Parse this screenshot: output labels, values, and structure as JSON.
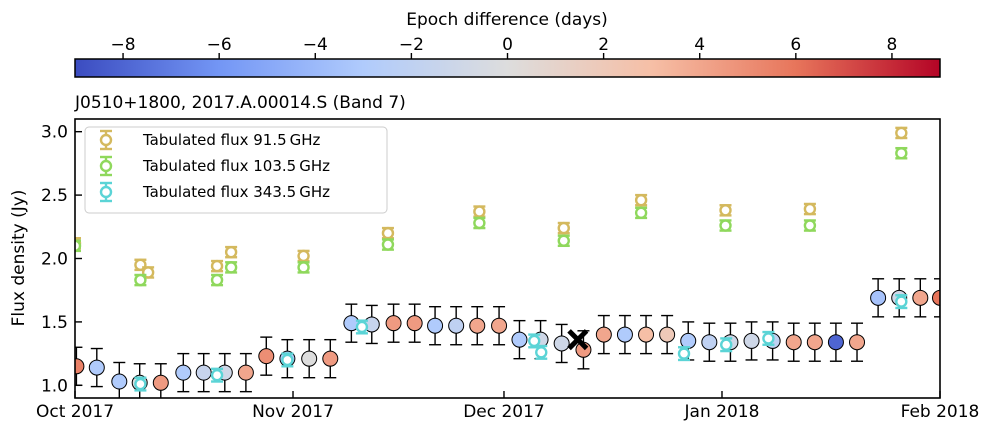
{
  "chart_data": {
    "type": "scatter",
    "title": "J0510+1800, 2017.A.00014.S (Band 7)",
    "xlabel": "",
    "ylabel": "Flux density (Jy)",
    "x_unit": "days since 2017-10-01",
    "xlim": [
      0,
      123
    ],
    "ylim": [
      0.9,
      3.1
    ],
    "xticks": [
      {
        "x": 0,
        "label": "Oct 2017"
      },
      {
        "x": 31,
        "label": "Nov 2017"
      },
      {
        "x": 61,
        "label": "Dec 2017"
      },
      {
        "x": 92,
        "label": "Jan 2018"
      },
      {
        "x": 123,
        "label": "Feb 2018"
      }
    ],
    "yticks": [
      {
        "v": 1.0,
        "label": "1.0"
      },
      {
        "v": 1.5,
        "label": "1.5"
      },
      {
        "v": 2.0,
        "label": "2.0"
      },
      {
        "v": 2.5,
        "label": "2.5"
      },
      {
        "v": 3.0,
        "label": "3.0"
      }
    ],
    "colorbar": {
      "label": "Epoch difference (days)",
      "range": [
        -9,
        9
      ],
      "colormap": "coolwarm",
      "stops": [
        "#3b4cc0",
        "#7396f5",
        "#b0cbfc",
        "#dddddd",
        "#f6bfa6",
        "#e7755b",
        "#b40426"
      ],
      "ticks": [
        {
          "v": -8,
          "label": "−8"
        },
        {
          "v": -6,
          "label": "−6"
        },
        {
          "v": -4,
          "label": "−4"
        },
        {
          "v": -2,
          "label": "−2"
        },
        {
          "v": 0,
          "label": "0"
        },
        {
          "v": 2,
          "label": "2"
        },
        {
          "v": 4,
          "label": "4"
        },
        {
          "v": 6,
          "label": "6"
        },
        {
          "v": 8,
          "label": "8"
        }
      ]
    },
    "legend": {
      "location": "top-left",
      "entries": [
        {
          "label": "Tabulated flux 91.5 GHz",
          "color": "#d4b95e"
        },
        {
          "label": "Tabulated flux 103.5 GHz",
          "color": "#8fd85c"
        },
        {
          "label": "Tabulated flux 343.5 GHz",
          "color": "#5bd4d6"
        }
      ]
    },
    "tabulated_series": [
      {
        "name": "Tabulated flux 91.5 GHz",
        "color": "#d4b95e",
        "yerr": 0.04,
        "points": [
          [
            0,
            2.12
          ],
          [
            9.3,
            1.95
          ],
          [
            10.4,
            1.89
          ],
          [
            20.2,
            1.94
          ],
          [
            22.2,
            2.05
          ],
          [
            32.5,
            2.02
          ],
          [
            44.5,
            2.2
          ],
          [
            57.5,
            2.37
          ],
          [
            69.5,
            2.24
          ],
          [
            80.5,
            2.46
          ],
          [
            92.5,
            2.38
          ],
          [
            104.5,
            2.39
          ],
          [
            117.5,
            2.99
          ]
        ]
      },
      {
        "name": "Tabulated flux 103.5 GHz",
        "color": "#8fd85c",
        "yerr": 0.04,
        "points": [
          [
            0,
            2.1
          ],
          [
            9.3,
            1.83
          ],
          [
            20.2,
            1.83
          ],
          [
            22.2,
            1.93
          ],
          [
            32.5,
            1.93
          ],
          [
            44.5,
            2.11
          ],
          [
            57.5,
            2.28
          ],
          [
            69.5,
            2.14
          ],
          [
            80.5,
            2.36
          ],
          [
            92.5,
            2.26
          ],
          [
            104.5,
            2.26
          ],
          [
            117.5,
            2.83
          ]
        ]
      },
      {
        "name": "Tabulated flux 343.5 GHz",
        "color": "#5bd4d6",
        "yerr": 0.05,
        "points": [
          [
            9.3,
            1.01
          ],
          [
            20.2,
            1.08
          ],
          [
            30.2,
            1.2
          ],
          [
            40.8,
            1.46
          ],
          [
            65.3,
            1.35
          ],
          [
            66.3,
            1.26
          ],
          [
            86.6,
            1.25
          ],
          [
            92.6,
            1.32
          ],
          [
            98.6,
            1.37
          ],
          [
            117.5,
            1.66
          ]
        ]
      }
    ],
    "measurements": {
      "yerr": 0.15,
      "points": [
        {
          "x": 0.2,
          "y": 1.15,
          "c": 5.5
        },
        {
          "x": 3.1,
          "y": 1.14,
          "c": -3.0
        },
        {
          "x": 6.3,
          "y": 1.03,
          "c": -3.0
        },
        {
          "x": 9.2,
          "y": 1.02,
          "c": 0.0
        },
        {
          "x": 12.2,
          "y": 1.02,
          "c": 4.5
        },
        {
          "x": 15.4,
          "y": 1.1,
          "c": -3.0
        },
        {
          "x": 18.3,
          "y": 1.1,
          "c": -1.5
        },
        {
          "x": 21.3,
          "y": 1.1,
          "c": -1.0
        },
        {
          "x": 24.3,
          "y": 1.1,
          "c": 4.0
        },
        {
          "x": 27.2,
          "y": 1.23,
          "c": 5.0
        },
        {
          "x": 30.2,
          "y": 1.21,
          "c": -3.0
        },
        {
          "x": 33.3,
          "y": 1.21,
          "c": 0.0
        },
        {
          "x": 36.3,
          "y": 1.21,
          "c": 4.5
        },
        {
          "x": 39.3,
          "y": 1.49,
          "c": -3.0
        },
        {
          "x": 42.2,
          "y": 1.48,
          "c": -1.5
        },
        {
          "x": 45.3,
          "y": 1.49,
          "c": 4.5
        },
        {
          "x": 48.3,
          "y": 1.49,
          "c": 4.5
        },
        {
          "x": 51.2,
          "y": 1.47,
          "c": -3.0
        },
        {
          "x": 54.2,
          "y": 1.47,
          "c": -2.0
        },
        {
          "x": 57.2,
          "y": 1.47,
          "c": 4.0
        },
        {
          "x": 60.3,
          "y": 1.47,
          "c": 4.0
        },
        {
          "x": 63.2,
          "y": 1.36,
          "c": -3.0
        },
        {
          "x": 66.2,
          "y": 1.36,
          "c": -1.0
        },
        {
          "x": 69.2,
          "y": 1.33,
          "c": -1.0
        },
        {
          "x": 72.3,
          "y": 1.28,
          "c": 4.5
        },
        {
          "x": 75.2,
          "y": 1.4,
          "c": 4.0
        },
        {
          "x": 78.2,
          "y": 1.4,
          "c": -3.0
        },
        {
          "x": 81.2,
          "y": 1.4,
          "c": 3.0
        },
        {
          "x": 84.2,
          "y": 1.4,
          "c": 2.0
        },
        {
          "x": 87.2,
          "y": 1.35,
          "c": -3.0
        },
        {
          "x": 90.2,
          "y": 1.34,
          "c": -2.0
        },
        {
          "x": 93.2,
          "y": 1.34,
          "c": -1.0
        },
        {
          "x": 96.2,
          "y": 1.35,
          "c": -1.0
        },
        {
          "x": 99.2,
          "y": 1.35,
          "c": -2.0
        },
        {
          "x": 102.2,
          "y": 1.34,
          "c": 4.0
        },
        {
          "x": 105.2,
          "y": 1.34,
          "c": 4.0
        },
        {
          "x": 108.2,
          "y": 1.34,
          "c": -8.0
        },
        {
          "x": 111.2,
          "y": 1.34,
          "c": 4.0
        },
        {
          "x": 114.2,
          "y": 1.69,
          "c": -3.5
        },
        {
          "x": 117.2,
          "y": 1.69,
          "c": -1.0
        },
        {
          "x": 120.2,
          "y": 1.69,
          "c": 4.0
        },
        {
          "x": 123.0,
          "y": 1.69,
          "c": 6.0
        }
      ]
    },
    "reference_marker": {
      "x": 71.5,
      "y": 1.36,
      "marker": "X",
      "color": "#000000"
    }
  }
}
